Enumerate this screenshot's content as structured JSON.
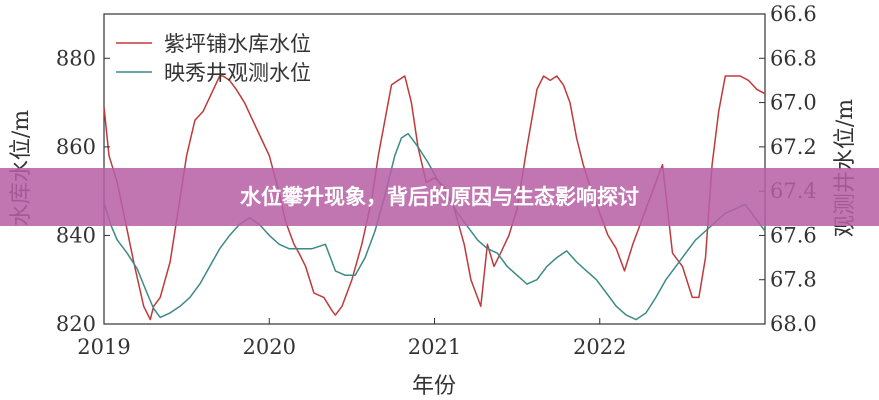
{
  "banner": {
    "title": "水位攀升现象，背后的原因与生态影响探讨"
  },
  "chart_data": {
    "type": "line",
    "ylabel_left": "水库水位/m",
    "ylabel_right": "观测井水位/m",
    "xlabel": "年份",
    "x_ticks": [
      "2019",
      "2020",
      "2021",
      "2022"
    ],
    "xlim": [
      2019.0,
      2023.0
    ],
    "ylim_left": [
      820,
      890
    ],
    "ylim_right_inverted": [
      66.6,
      68.0
    ],
    "yticks_left": [
      "820",
      "840",
      "860",
      "880"
    ],
    "yticks_right": [
      "66.6",
      "66.8",
      "67.0",
      "67.2",
      "67.4",
      "67.6",
      "67.8",
      "68.0"
    ],
    "legend_position": "top-left",
    "grid": false,
    "colors": {
      "reservoir": "#c0393b",
      "well": "#3c8a86",
      "axis": "#333333"
    },
    "series": [
      {
        "name": "紫坪铺水库水位",
        "axis": "left",
        "x": [
          2019.0,
          2019.03,
          2019.08,
          2019.13,
          2019.18,
          2019.24,
          2019.28,
          2019.3,
          2019.34,
          2019.4,
          2019.45,
          2019.5,
          2019.55,
          2019.6,
          2019.65,
          2019.7,
          2019.72,
          2019.76,
          2019.8,
          2019.85,
          2019.9,
          2019.95,
          2020.0,
          2020.05,
          2020.1,
          2020.15,
          2020.18,
          2020.22,
          2020.27,
          2020.33,
          2020.38,
          2020.4,
          2020.44,
          2020.5,
          2020.56,
          2020.62,
          2020.66,
          2020.7,
          2020.74,
          2020.78,
          2020.82,
          2020.86,
          2020.9,
          2020.95,
          2021.0,
          2021.06,
          2021.12,
          2021.18,
          2021.22,
          2021.28,
          2021.32,
          2021.36,
          2021.4,
          2021.45,
          2021.5,
          2021.56,
          2021.62,
          2021.66,
          2021.7,
          2021.74,
          2021.78,
          2021.82,
          2021.86,
          2021.9,
          2021.95,
          2022.0,
          2022.05,
          2022.1,
          2022.15,
          2022.2,
          2022.26,
          2022.32,
          2022.38,
          2022.44,
          2022.5,
          2022.56,
          2022.6,
          2022.64,
          2022.68,
          2022.72,
          2022.76,
          2022.8,
          2022.85,
          2022.9,
          2022.95,
          2023.0
        ],
        "values": [
          869,
          858,
          852,
          843,
          834,
          824,
          821,
          824,
          826,
          834,
          846,
          858,
          866,
          868,
          872,
          876,
          876,
          875,
          873,
          870,
          866,
          862,
          858,
          851,
          843,
          838,
          836,
          833,
          827,
          826,
          823,
          822,
          824,
          830,
          838,
          848,
          858,
          866,
          874,
          875,
          876,
          870,
          860,
          852,
          853,
          851,
          846,
          838,
          830,
          824,
          838,
          833,
          836,
          840,
          846,
          860,
          873,
          876,
          875,
          876,
          874,
          870,
          862,
          856,
          850,
          845,
          840,
          837,
          832,
          838,
          844,
          850,
          856,
          836,
          833,
          826,
          826,
          835,
          856,
          868,
          876,
          876,
          876,
          875,
          873,
          872
        ]
      },
      {
        "name": "映秀井观测水位",
        "axis": "right",
        "x": [
          2019.0,
          2019.04,
          2019.08,
          2019.14,
          2019.2,
          2019.26,
          2019.3,
          2019.34,
          2019.4,
          2019.46,
          2019.52,
          2019.58,
          2019.64,
          2019.7,
          2019.76,
          2019.82,
          2019.88,
          2019.94,
          2020.0,
          2020.06,
          2020.12,
          2020.18,
          2020.26,
          2020.34,
          2020.4,
          2020.46,
          2020.52,
          2020.58,
          2020.64,
          2020.7,
          2020.76,
          2020.8,
          2020.84,
          2020.9,
          2020.96,
          2021.02,
          2021.08,
          2021.14,
          2021.2,
          2021.26,
          2021.32,
          2021.38,
          2021.44,
          2021.5,
          2021.56,
          2021.62,
          2021.68,
          2021.74,
          2021.8,
          2021.86,
          2021.92,
          2021.98,
          2022.04,
          2022.1,
          2022.16,
          2022.22,
          2022.28,
          2022.34,
          2022.4,
          2022.46,
          2022.52,
          2022.58,
          2022.64,
          2022.7,
          2022.76,
          2022.82,
          2022.88,
          2022.94,
          2023.0
        ],
        "values": [
          67.45,
          67.55,
          67.62,
          67.68,
          67.75,
          67.86,
          67.93,
          67.97,
          67.95,
          67.92,
          67.88,
          67.82,
          67.74,
          67.66,
          67.6,
          67.55,
          67.52,
          67.55,
          67.6,
          67.64,
          67.66,
          67.66,
          67.66,
          67.64,
          67.76,
          67.78,
          67.78,
          67.7,
          67.58,
          67.42,
          67.24,
          67.16,
          67.14,
          67.2,
          67.27,
          67.35,
          67.42,
          67.5,
          67.56,
          67.62,
          67.66,
          67.68,
          67.74,
          67.78,
          67.82,
          67.8,
          67.74,
          67.7,
          67.67,
          67.72,
          67.76,
          67.8,
          67.86,
          67.92,
          67.96,
          67.98,
          67.95,
          67.88,
          67.8,
          67.74,
          67.68,
          67.62,
          67.58,
          67.54,
          67.5,
          67.48,
          67.46,
          67.52,
          67.58
        ]
      }
    ]
  }
}
